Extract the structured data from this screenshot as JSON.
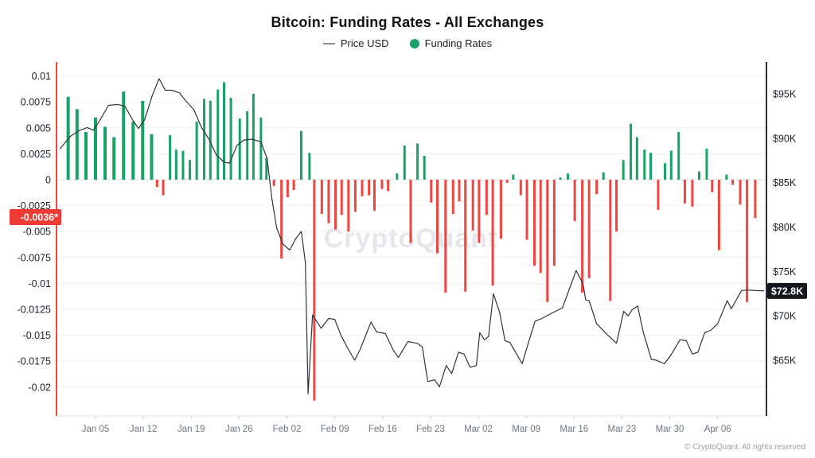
{
  "title": "Bitcoin: Funding Rates - All Exchanges",
  "legend": {
    "price_label": "Price USD",
    "funding_label": "Funding Rates"
  },
  "watermark": "CryptoQuant",
  "footer": "© CryptoQuant. All rights reserved",
  "badges": {
    "funding_current": "-0.0036*",
    "price_current": "$72.8K"
  },
  "colors": {
    "funding_positive": "#18a266",
    "funding_negative": "#f0453e",
    "price_line": "#2f343c",
    "left_axis_line": "#f0473f",
    "right_axis_line": "#2a2d34",
    "grid": "#f1f1f5",
    "zero_grid": "#d9d9e0",
    "axis_label_dark": "#1c2028",
    "x_label_gray": "#707680",
    "badge_red_bg": "#ee3b33",
    "badge_black_bg": "#15181e",
    "watermark_gray": "#e6e6eb"
  },
  "axes": {
    "left_ticks": [
      {
        "label": "0.01",
        "value": 0.01
      },
      {
        "label": "0.0075",
        "value": 0.0075
      },
      {
        "label": "0.005",
        "value": 0.005
      },
      {
        "label": "0.0025",
        "value": 0.0025
      },
      {
        "label": "0",
        "value": 0
      },
      {
        "label": "-0.0025",
        "value": -0.0025
      },
      {
        "label": "-0.005",
        "value": -0.005
      },
      {
        "label": "-0.0075",
        "value": -0.0075
      },
      {
        "label": "-0.01",
        "value": -0.01
      },
      {
        "label": "-0.0125",
        "value": -0.0125
      },
      {
        "label": "-0.015",
        "value": -0.015
      },
      {
        "label": "-0.0175",
        "value": -0.0175
      },
      {
        "label": "-0.02",
        "value": -0.02
      }
    ],
    "right_ticks": [
      {
        "label": "$95K",
        "value": 95
      },
      {
        "label": "$90K",
        "value": 90
      },
      {
        "label": "$85K",
        "value": 85
      },
      {
        "label": "$80K",
        "value": 80
      },
      {
        "label": "$75K",
        "value": 75
      },
      {
        "label": "$70K",
        "value": 70
      },
      {
        "label": "$65K",
        "value": 65
      }
    ],
    "x_ticks": [
      {
        "label": "Jan 05",
        "day": 4
      },
      {
        "label": "Jan 12",
        "day": 11
      },
      {
        "label": "Jan 19",
        "day": 18
      },
      {
        "label": "Jan 26",
        "day": 25
      },
      {
        "label": "Feb 02",
        "day": 32
      },
      {
        "label": "Feb 09",
        "day": 39
      },
      {
        "label": "Feb 16",
        "day": 46
      },
      {
        "label": "Feb 23",
        "day": 53
      },
      {
        "label": "Mar 02",
        "day": 60
      },
      {
        "label": "Mar 09",
        "day": 67
      },
      {
        "label": "Mar 16",
        "day": 74
      },
      {
        "label": "Mar 23",
        "day": 81
      },
      {
        "label": "Mar 30",
        "day": 88
      },
      {
        "label": "Apr 06",
        "day": 95
      }
    ]
  },
  "chart_data": {
    "type": "mixed",
    "x_axis": "days since Jan 01",
    "left_axis_range": [
      -0.02,
      0.01
    ],
    "right_axis_range_kusd": [
      65,
      95
    ],
    "grid": true,
    "legend_position": "top-center",
    "series": [
      {
        "name": "Funding Rates",
        "type": "bar",
        "current_value": -0.0036,
        "points": [
          [
            0,
            0.008
          ],
          [
            1.3,
            0.0068
          ],
          [
            2.6,
            0.0046
          ],
          [
            4,
            0.006
          ],
          [
            5.4,
            0.0051
          ],
          [
            6.7,
            0.0041
          ],
          [
            8.1,
            0.0085
          ],
          [
            9.5,
            0.0056
          ],
          [
            10.9,
            0.0076
          ],
          [
            12.2,
            0.0044
          ],
          [
            13,
            -0.0007
          ],
          [
            13.9,
            -0.0015
          ],
          [
            14.9,
            0.0043
          ],
          [
            15.8,
            0.0029
          ],
          [
            16.8,
            0.0028
          ],
          [
            17.8,
            0.0019
          ],
          [
            18.8,
            0.0056
          ],
          [
            19.9,
            0.0078
          ],
          [
            20.8,
            0.0076
          ],
          [
            21.9,
            0.0087
          ],
          [
            22.8,
            0.0094
          ],
          [
            23.8,
            0.0079
          ],
          [
            25.1,
            0.0059
          ],
          [
            26.2,
            0.0066
          ],
          [
            27.1,
            0.0083
          ],
          [
            28.2,
            0.006
          ],
          [
            29,
            0.0021
          ],
          [
            30.1,
            -0.0006
          ],
          [
            31.2,
            -0.0076
          ],
          [
            32.1,
            -0.0017
          ],
          [
            33,
            -0.001
          ],
          [
            34.1,
            0.0047
          ],
          [
            35.3,
            0.0026
          ],
          [
            36,
            -0.0213
          ],
          [
            37.1,
            -0.0033
          ],
          [
            38.1,
            -0.0042
          ],
          [
            39.1,
            -0.0048
          ],
          [
            40,
            -0.0034
          ],
          [
            41,
            -0.005
          ],
          [
            42,
            -0.0031
          ],
          [
            43,
            -0.0016
          ],
          [
            44,
            -0.0015
          ],
          [
            44.8,
            -0.003
          ],
          [
            45.9,
            -0.0009
          ],
          [
            46.8,
            -0.0011
          ],
          [
            48.1,
            0.0006
          ],
          [
            49.2,
            0.0033
          ],
          [
            50.1,
            -0.0061
          ],
          [
            51.1,
            0.0035
          ],
          [
            52.1,
            0.0023
          ],
          [
            53.1,
            -0.0022
          ],
          [
            54,
            -0.0071
          ],
          [
            55.2,
            -0.0109
          ],
          [
            56.3,
            -0.0033
          ],
          [
            57.2,
            -0.0021
          ],
          [
            58.1,
            -0.0108
          ],
          [
            59.2,
            -0.0049
          ],
          [
            60.1,
            -0.0061
          ],
          [
            61.2,
            -0.0034
          ],
          [
            62.1,
            -0.0102
          ],
          [
            63.3,
            -0.0057
          ],
          [
            64.2,
            -0.0003
          ],
          [
            65.1,
            0.0005
          ],
          [
            66.2,
            -0.0015
          ],
          [
            67.1,
            -0.0058
          ],
          [
            68.2,
            -0.0083
          ],
          [
            69.1,
            -0.009
          ],
          [
            70.1,
            -0.0118
          ],
          [
            71.1,
            -0.0083
          ],
          [
            72,
            0.0002
          ],
          [
            73.1,
            0.0006
          ],
          [
            74.1,
            -0.004
          ],
          [
            75.2,
            -0.0109
          ],
          [
            76.2,
            -0.0095
          ],
          [
            77.3,
            -0.0014
          ],
          [
            78.3,
            0.0007
          ],
          [
            79.3,
            -0.0117
          ],
          [
            80.2,
            -0.005
          ],
          [
            81.2,
            0.0019
          ],
          [
            82.3,
            0.0054
          ],
          [
            83.2,
            0.0041
          ],
          [
            84.3,
            0.0029
          ],
          [
            85.2,
            0.0026
          ],
          [
            86.3,
            -0.0029
          ],
          [
            87.3,
            0.0016
          ],
          [
            88.2,
            0.0028
          ],
          [
            89.3,
            0.0046
          ],
          [
            90.2,
            -0.0023
          ],
          [
            91.3,
            -0.0026
          ],
          [
            92.3,
            0.0008
          ],
          [
            93.4,
            0.003
          ],
          [
            94.2,
            -0.0012
          ],
          [
            95.2,
            -0.0068
          ],
          [
            96.3,
            0.0005
          ],
          [
            97.2,
            -0.0005
          ],
          [
            98.3,
            -0.0024
          ],
          [
            99.3,
            -0.0118
          ],
          [
            100.5,
            -0.0037
          ]
        ]
      },
      {
        "name": "Price USD",
        "type": "line",
        "unit": "thousand USD",
        "current_value_kusd": 72.8,
        "points": [
          [
            -1.2,
            88.8
          ],
          [
            0.3,
            90.2
          ],
          [
            1.7,
            90.9
          ],
          [
            2.8,
            91.2
          ],
          [
            3.7,
            90.9
          ],
          [
            4.7,
            92.1
          ],
          [
            5.9,
            93.7
          ],
          [
            7.3,
            93.8
          ],
          [
            8.3,
            93.6
          ],
          [
            9.4,
            92.1
          ],
          [
            10.3,
            91.1
          ],
          [
            11.2,
            92.1
          ],
          [
            12.3,
            94.8
          ],
          [
            13.3,
            96.7
          ],
          [
            14.2,
            95.4
          ],
          [
            15.2,
            95.4
          ],
          [
            16.3,
            95.1
          ],
          [
            17.2,
            94.2
          ],
          [
            18.4,
            93.2
          ],
          [
            19.5,
            91.2
          ],
          [
            20.6,
            89.9
          ],
          [
            21.7,
            88.1
          ],
          [
            22.8,
            87.3
          ],
          [
            23.6,
            87.2
          ],
          [
            24.7,
            89.2
          ],
          [
            25.7,
            89.8
          ],
          [
            26.9,
            89.9
          ],
          [
            28.2,
            89.6
          ],
          [
            29.1,
            87.7
          ],
          [
            29.8,
            83.2
          ],
          [
            30.5,
            79.9
          ],
          [
            31.4,
            78.1
          ],
          [
            32.4,
            77.4
          ],
          [
            33.3,
            78.7
          ],
          [
            34.1,
            79.5
          ],
          [
            34.7,
            76.0
          ],
          [
            35.1,
            61.2
          ],
          [
            35.75,
            70.1
          ],
          [
            37,
            68.6
          ],
          [
            38.1,
            69.7
          ],
          [
            39,
            69.6
          ],
          [
            39.9,
            67.8
          ],
          [
            41,
            66.2
          ],
          [
            41.9,
            65.0
          ],
          [
            42.7,
            66.2
          ],
          [
            44.3,
            69.3
          ],
          [
            45.1,
            68.2
          ],
          [
            46.4,
            68.0
          ],
          [
            47.5,
            66.2
          ],
          [
            48.3,
            65.3
          ],
          [
            49.7,
            67.1
          ],
          [
            51.1,
            66.9
          ],
          [
            51.8,
            66.5
          ],
          [
            52.6,
            62.6
          ],
          [
            53.6,
            62.8
          ],
          [
            54.3,
            62.0
          ],
          [
            55.3,
            64.4
          ],
          [
            56.1,
            63.5
          ],
          [
            57.1,
            65.9
          ],
          [
            57.9,
            65.7
          ],
          [
            58.8,
            64.2
          ],
          [
            59.7,
            64.4
          ],
          [
            60.2,
            68.1
          ],
          [
            60.9,
            67.3
          ],
          [
            61.5,
            67.7
          ],
          [
            62.2,
            72.5
          ],
          [
            63.1,
            70.4
          ],
          [
            63.9,
            67.2
          ],
          [
            64.6,
            67.0
          ],
          [
            65.6,
            65.7
          ],
          [
            66.4,
            64.6
          ],
          [
            67.3,
            66.9
          ],
          [
            68.3,
            69.4
          ],
          [
            69.3,
            69.7
          ],
          [
            70.5,
            70.2
          ],
          [
            72.3,
            70.9
          ],
          [
            74.3,
            75.1
          ],
          [
            75.3,
            73.6
          ],
          [
            75.7,
            71.8
          ],
          [
            76.2,
            71.7
          ],
          [
            77.3,
            69.1
          ],
          [
            78.7,
            68.0
          ],
          [
            80.2,
            66.9
          ],
          [
            81.25,
            70.5
          ],
          [
            81.9,
            70.0
          ],
          [
            82.5,
            70.7
          ],
          [
            83.3,
            71.1
          ],
          [
            84.1,
            68.2
          ],
          [
            85.3,
            65.1
          ],
          [
            86,
            65.0
          ],
          [
            87.2,
            64.6
          ],
          [
            88.1,
            65.5
          ],
          [
            89.5,
            67.3
          ],
          [
            90.4,
            67.2
          ],
          [
            91.3,
            65.7
          ],
          [
            92.1,
            65.9
          ],
          [
            93.1,
            68.1
          ],
          [
            94.05,
            68.4
          ],
          [
            95,
            69.1
          ],
          [
            96.4,
            71.7
          ],
          [
            97,
            70.8
          ],
          [
            98.5,
            72.85
          ],
          [
            99.4,
            72.9
          ],
          [
            101.8,
            72.8
          ]
        ]
      }
    ]
  }
}
